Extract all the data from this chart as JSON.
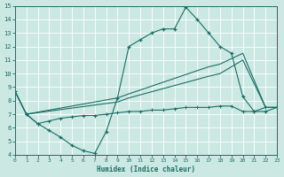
{
  "xlabel": "Humidex (Indice chaleur)",
  "xlim": [
    0,
    23
  ],
  "ylim": [
    4,
    15
  ],
  "xticks": [
    0,
    1,
    2,
    3,
    4,
    5,
    6,
    7,
    8,
    9,
    10,
    11,
    12,
    13,
    14,
    15,
    16,
    17,
    18,
    19,
    20,
    21,
    22,
    23
  ],
  "yticks": [
    4,
    5,
    6,
    7,
    8,
    9,
    10,
    11,
    12,
    13,
    14,
    15
  ],
  "bg_color": "#cce8e3",
  "line_color": "#1a6e64",
  "grid_color": "#b8d8d4",
  "line1_x": [
    0,
    1,
    2,
    3,
    4,
    5,
    6,
    7,
    8,
    9,
    10,
    11,
    12,
    13,
    14,
    15,
    16,
    17,
    18,
    19,
    20,
    21,
    22,
    23
  ],
  "line1_y": [
    8.7,
    7.0,
    6.3,
    5.8,
    5.3,
    4.7,
    4.3,
    4.1,
    5.7,
    8.2,
    12.0,
    12.5,
    13.0,
    13.3,
    13.3,
    14.9,
    14.0,
    13.0,
    12.0,
    11.5,
    8.3,
    7.2,
    7.2,
    7.5
  ],
  "line2_x": [
    0,
    1,
    9,
    10,
    17,
    18,
    20,
    22,
    23
  ],
  "line2_y": [
    8.7,
    7.0,
    8.2,
    8.5,
    10.5,
    10.7,
    11.5,
    7.5,
    7.5
  ],
  "line3_x": [
    0,
    1,
    9,
    10,
    17,
    18,
    20,
    22,
    23
  ],
  "line3_y": [
    8.7,
    7.0,
    7.9,
    8.2,
    9.8,
    10.0,
    11.0,
    7.5,
    7.5
  ],
  "line4_x": [
    1,
    2,
    3,
    4,
    5,
    6,
    7,
    8,
    9,
    10,
    11,
    12,
    13,
    14,
    15,
    16,
    17,
    18,
    19,
    20,
    21,
    22,
    23
  ],
  "line4_y": [
    7.0,
    6.3,
    6.5,
    6.7,
    6.8,
    6.9,
    6.9,
    7.0,
    7.1,
    7.2,
    7.2,
    7.3,
    7.3,
    7.4,
    7.5,
    7.5,
    7.5,
    7.6,
    7.6,
    7.2,
    7.2,
    7.5,
    7.5
  ]
}
